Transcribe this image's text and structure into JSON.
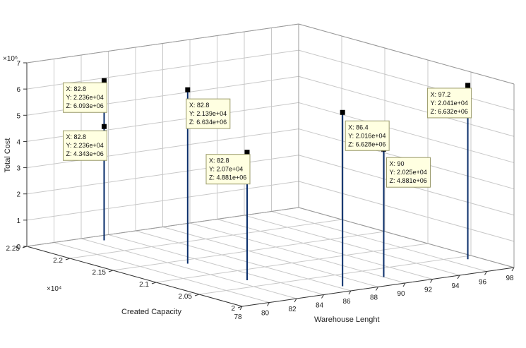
{
  "chart_data": {
    "type": "stem3",
    "xlabel": "Warehouse Lenght",
    "ylabel": "Created Capacity",
    "zlabel": "Total Cost",
    "y_multiplier_label": "×10⁴",
    "z_multiplier_label": "×10⁶",
    "xlim": [
      78,
      98
    ],
    "ylim": [
      20000,
      22500
    ],
    "zlim": [
      0,
      7000000
    ],
    "x_ticks": [
      "78",
      "80",
      "82",
      "84",
      "86",
      "88",
      "90",
      "92",
      "94",
      "96",
      "98"
    ],
    "y_ticks": [
      "2",
      "2.05",
      "2.1",
      "2.15",
      "2.2",
      "2.25"
    ],
    "z_ticks": [
      "0",
      "1",
      "2",
      "3",
      "4",
      "5",
      "6",
      "7"
    ],
    "grid": true,
    "marker_color": "#0b2f6b",
    "stems": [
      {
        "x": 82.8,
        "y": 22360,
        "z": 6093000
      },
      {
        "x": 82.8,
        "y": 22360,
        "z": 4343000
      },
      {
        "x": 82.8,
        "y": 21390,
        "z": 6634000
      },
      {
        "x": 82.8,
        "y": 20700,
        "z": 4881000
      },
      {
        "x": 86.4,
        "y": 20160,
        "z": 6628000
      },
      {
        "x": 90,
        "y": 20250,
        "z": 4881000
      },
      {
        "x": 97.2,
        "y": 20410,
        "z": 6632000
      }
    ],
    "datatips": [
      {
        "lines": [
          "X: 82.8",
          "Y: 2.236e+04",
          "Z: 6.093e+06"
        ]
      },
      {
        "lines": [
          "X: 82.8",
          "Y: 2.236e+04",
          "Z: 4.343e+06"
        ]
      },
      {
        "lines": [
          "X: 82.8",
          "Y: 2.139e+04",
          "Z: 6.634e+06"
        ]
      },
      {
        "lines": [
          "X: 82.8",
          "Y: 2.07e+04",
          "Z: 4.881e+06"
        ]
      },
      {
        "lines": [
          "X: 86.4",
          "Y: 2.016e+04",
          "Z: 6.628e+06"
        ]
      },
      {
        "lines": [
          "X: 90",
          "Y: 2.025e+04",
          "Z: 4.881e+06"
        ]
      },
      {
        "lines": [
          "X: 97.2",
          "Y: 2.041e+04",
          "Z: 6.632e+06"
        ]
      }
    ]
  }
}
